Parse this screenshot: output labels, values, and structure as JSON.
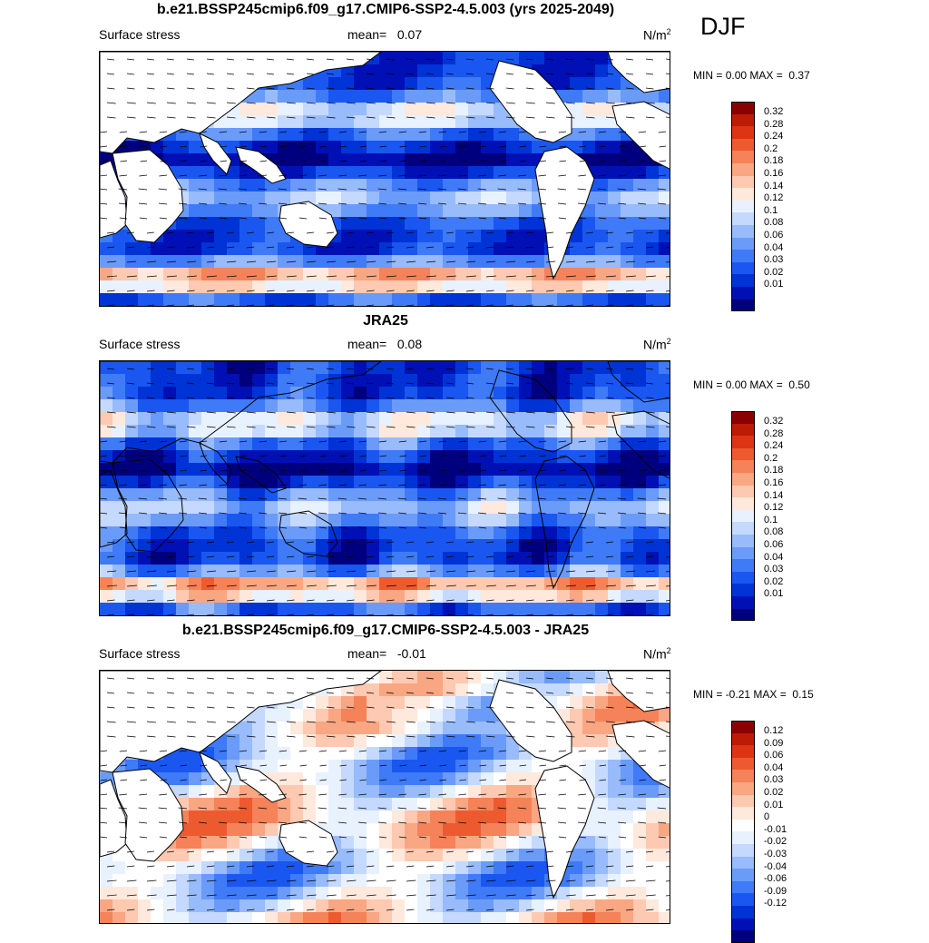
{
  "season": "DJF",
  "colors": {
    "full_field": [
      "#00007f",
      "#0010b4",
      "#0033d6",
      "#1a57f0",
      "#3f7af7",
      "#6b9bf9",
      "#97bbfb",
      "#c4d9fd",
      "#e8f1fe",
      "#ffe9dc",
      "#fdc9b0",
      "#f9a683",
      "#f58258",
      "#ee5a30",
      "#dd3414",
      "#bc1b06",
      "#8b0000"
    ],
    "diff_field": [
      "#00007f",
      "#0010b4",
      "#0033d6",
      "#1a57f0",
      "#3f7af7",
      "#6b9bf9",
      "#97bbfb",
      "#c4d9fd",
      "#e8f1fe",
      "#ffffff",
      "#ffe9dc",
      "#fdc9b0",
      "#f9a683",
      "#f58258",
      "#ee5a30",
      "#dd3414",
      "#bc1b06",
      "#8b0000"
    ]
  },
  "panels": [
    {
      "title": "b.e21.BSSP245cmip6.f09_g17.CMIP6-SSP2-4.5.003 (yrs 2025-2049)",
      "field_label": "Surface stress",
      "mean_label": "mean=",
      "mean": "0.07",
      "units": "N/m",
      "units_sup": "2",
      "min_label": "MIN =",
      "min": "0.00",
      "max_label": "MAX =",
      "max": "0.37",
      "colorbar": [
        "0.32",
        "0.28",
        "0.24",
        "0.2",
        "0.18",
        "0.16",
        "0.14",
        "0.12",
        "0.1",
        "0.08",
        "0.06",
        "0.04",
        "0.03",
        "0.02",
        "0.01"
      ],
      "palette": "full_field"
    },
    {
      "title": "JRA25",
      "field_label": "Surface stress",
      "mean_label": "mean=",
      "mean": "0.08",
      "units": "N/m",
      "units_sup": "2",
      "min_label": "MIN =",
      "min": "0.00",
      "max_label": "MAX =",
      "max": "0.50",
      "colorbar": [
        "0.32",
        "0.28",
        "0.24",
        "0.2",
        "0.18",
        "0.16",
        "0.14",
        "0.12",
        "0.1",
        "0.08",
        "0.06",
        "0.04",
        "0.03",
        "0.02",
        "0.01"
      ],
      "palette": "full_field"
    },
    {
      "title": "b.e21.BSSP245cmip6.f09_g17.CMIP6-SSP2-4.5.003 - JRA25",
      "field_label": "Surface stress",
      "mean_label": "mean=",
      "mean": "-0.01",
      "units": "N/m",
      "units_sup": "2",
      "min_label": "MIN =",
      "min": "-0.21",
      "max_label": "MAX =",
      "max": "0.15",
      "colorbar": [
        "0.12",
        "0.09",
        "0.06",
        "0.04",
        "0.03",
        "0.02",
        "0.01",
        "0",
        "-0.01",
        "-0.02",
        "-0.03",
        "-0.04",
        "-0.06",
        "-0.09",
        "-0.12"
      ],
      "palette": "diff_field"
    }
  ]
}
